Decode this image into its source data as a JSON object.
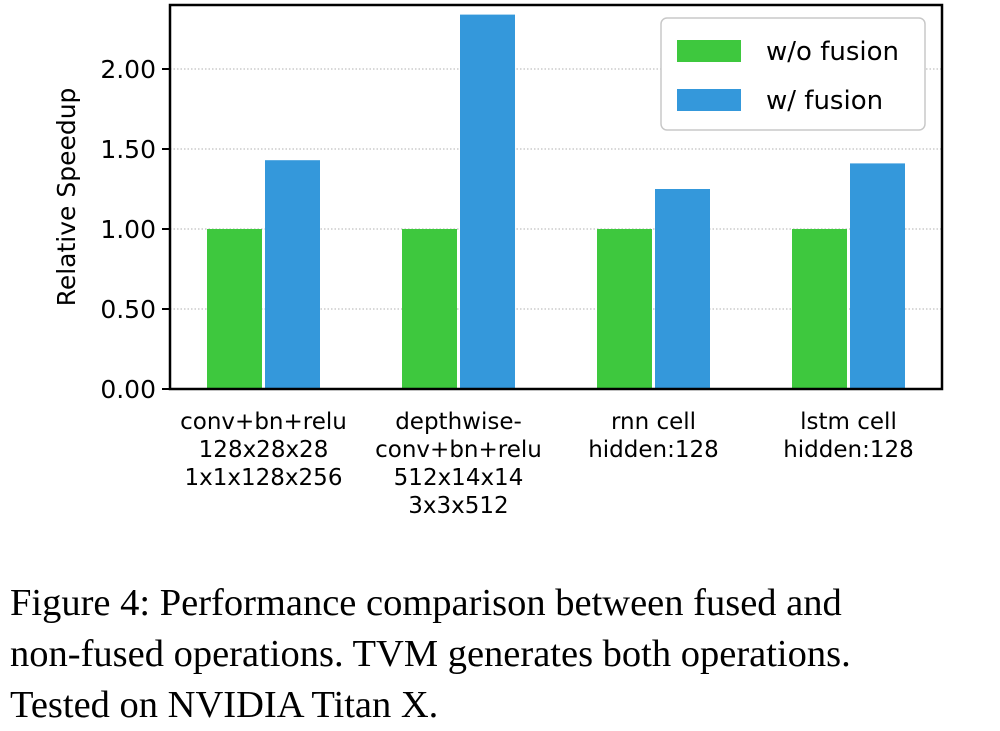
{
  "chart_data": {
    "type": "bar",
    "categories": [
      [
        "conv+bn+relu",
        "128x28x28",
        "1x1x128x256"
      ],
      [
        "depthwise-",
        "conv+bn+relu",
        "512x14x14",
        "3x3x512"
      ],
      [
        "rnn cell",
        "hidden:128"
      ],
      [
        "lstm cell",
        "hidden:128"
      ]
    ],
    "series": [
      {
        "name": "w/o fusion",
        "values": [
          1.0,
          1.0,
          1.0,
          1.0
        ]
      },
      {
        "name": "w/ fusion",
        "values": [
          1.43,
          2.34,
          1.25,
          1.41
        ]
      }
    ],
    "title": "",
    "xlabel": "",
    "ylabel": "Relative Speedup",
    "ylim": [
      0,
      2.4
    ],
    "yticks": [
      "0.00",
      "0.50",
      "1.00",
      "1.50",
      "2.00"
    ],
    "grid": "y-dotted",
    "legend_position": "top-right"
  },
  "colors": {
    "without_fusion": "#3ec83e",
    "with_fusion": "#3498db"
  },
  "caption": {
    "line1": "Figure 4: Performance comparison between fused and",
    "line2": "non-fused operations. TVM generates both operations.",
    "line3": "Tested on NVIDIA Titan X."
  }
}
